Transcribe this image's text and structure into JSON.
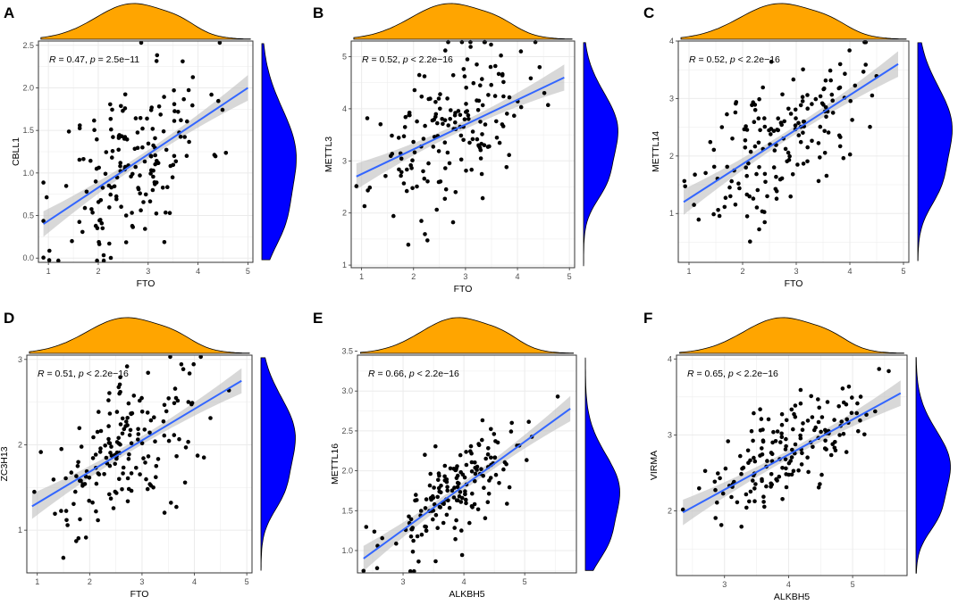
{
  "colors": {
    "top_density": "#FFA500",
    "side_density": "#0000FF",
    "regression": "#3366FF",
    "ci_band": "#BEBEBE",
    "points": "#000000",
    "grid": "#EBEBEB",
    "panel_border": "#333333"
  },
  "chart_data": [
    {
      "id": "A",
      "type": "scatter",
      "letter": "A",
      "xlabel": "FTO",
      "ylabel": "CBLL1",
      "annotation": {
        "r_label": "R",
        "r_text": " = 0.47, ",
        "p_label": "p",
        "p_text": " = 2.5e−11"
      },
      "xlim": [
        0.8,
        5.1
      ],
      "ylim": [
        -0.05,
        2.55
      ],
      "xticks": [
        1,
        2,
        3,
        4,
        5
      ],
      "yticks": [
        0.0,
        0.5,
        1.0,
        1.5,
        2.0,
        2.5
      ],
      "ytick_labels": [
        "0.0",
        "0.5",
        "1.0",
        "1.5",
        "2.0",
        "2.5"
      ],
      "fit": {
        "x0": 0.9,
        "y0": 0.4,
        "x1": 5.0,
        "y1": 2.0
      },
      "x_mode": 2.7,
      "x_spread": 0.75,
      "y_mode": 1.2,
      "y_spread": 0.55,
      "n_points": 170,
      "seed": 11,
      "jitter": 0.55
    },
    {
      "id": "B",
      "type": "scatter",
      "letter": "B",
      "xlabel": "FTO",
      "ylabel": "METTL3",
      "annotation": {
        "r_label": "R",
        "r_text": " = 0.52, ",
        "p_label": "p",
        "p_text": " < 2.2e−16"
      },
      "xlim": [
        0.8,
        5.1
      ],
      "ylim": [
        0.95,
        5.3
      ],
      "xticks": [
        1,
        2,
        3,
        4,
        5
      ],
      "yticks": [
        1,
        2,
        3,
        4,
        5
      ],
      "ytick_labels": [
        "1",
        "2",
        "3",
        "4",
        "5"
      ],
      "fit": {
        "x0": 0.9,
        "y0": 2.7,
        "x1": 4.9,
        "y1": 4.6
      },
      "x_mode": 2.7,
      "x_spread": 0.75,
      "y_mode": 3.6,
      "y_spread": 0.7,
      "n_points": 170,
      "seed": 23,
      "jitter": 0.7
    },
    {
      "id": "C",
      "type": "scatter",
      "letter": "C",
      "xlabel": "FTO",
      "ylabel": "METTL14",
      "annotation": {
        "r_label": "R",
        "r_text": " = 0.52, ",
        "p_label": "p",
        "p_text": " < 2.2e−16"
      },
      "xlim": [
        0.8,
        5.1
      ],
      "ylim": [
        0.15,
        4.0
      ],
      "xticks": [
        1,
        2,
        3,
        4,
        5
      ],
      "yticks": [
        1,
        2,
        3,
        4
      ],
      "ytick_labels": [
        "1",
        "2",
        "3",
        "4"
      ],
      "fit": {
        "x0": 0.9,
        "y0": 1.2,
        "x1": 4.9,
        "y1": 3.6
      },
      "x_mode": 2.7,
      "x_spread": 0.75,
      "y_mode": 2.5,
      "y_spread": 0.7,
      "n_points": 170,
      "seed": 37,
      "jitter": 0.6
    },
    {
      "id": "D",
      "type": "scatter",
      "letter": "D",
      "xlabel": "FTO",
      "ylabel": "ZC3H13",
      "annotation": {
        "r_label": "R",
        "r_text": " = 0.51, ",
        "p_label": "p",
        "p_text": " < 2.2e−16"
      },
      "xlim": [
        0.8,
        5.1
      ],
      "ylim": [
        0.5,
        3.05
      ],
      "xticks": [
        1,
        2,
        3,
        4,
        5
      ],
      "yticks": [
        1,
        2,
        3
      ],
      "ytick_labels": [
        "1",
        "2",
        "3"
      ],
      "fit": {
        "x0": 0.9,
        "y0": 1.28,
        "x1": 4.9,
        "y1": 2.75
      },
      "x_mode": 2.7,
      "x_spread": 0.75,
      "y_mode": 2.1,
      "y_spread": 0.45,
      "n_points": 170,
      "seed": 41,
      "jitter": 0.4
    },
    {
      "id": "E",
      "type": "scatter",
      "letter": "E",
      "xlabel": "ALKBH5",
      "ylabel": "METTL16",
      "annotation": {
        "r_label": "R",
        "r_text": " = 0.66, ",
        "p_label": "p",
        "p_text": " < 2.2e−16"
      },
      "xlim": [
        2.25,
        5.85
      ],
      "ylim": [
        0.72,
        3.45
      ],
      "xticks": [
        3,
        4,
        5
      ],
      "yticks": [
        1.0,
        1.5,
        2.0,
        2.5,
        3.0,
        3.5
      ],
      "ytick_labels": [
        "1.0",
        "1.5",
        "2.0",
        "2.5",
        "3.0",
        "3.5"
      ],
      "fit": {
        "x0": 2.35,
        "y0": 0.9,
        "x1": 5.75,
        "y1": 2.78
      },
      "x_mode": 3.9,
      "x_spread": 0.6,
      "y_mode": 1.75,
      "y_spread": 0.45,
      "n_points": 170,
      "seed": 53,
      "jitter": 0.3
    },
    {
      "id": "F",
      "type": "scatter",
      "letter": "F",
      "xlabel": "ALKBH5",
      "ylabel": "VIRMA",
      "annotation": {
        "r_label": "R",
        "r_text": " = 0.65, ",
        "p_label": "p",
        "p_text": " < 2.2e−16"
      },
      "xlim": [
        2.25,
        5.85
      ],
      "ylim": [
        1.15,
        4.05
      ],
      "xticks": [
        3,
        4,
        5
      ],
      "yticks": [
        2,
        3,
        4
      ],
      "ytick_labels": [
        "2",
        "3",
        "4"
      ],
      "fit": {
        "x0": 2.35,
        "y0": 1.98,
        "x1": 5.75,
        "y1": 3.55
      },
      "x_mode": 3.9,
      "x_spread": 0.6,
      "y_mode": 2.6,
      "y_spread": 0.45,
      "n_points": 170,
      "seed": 67,
      "jitter": 0.3
    }
  ]
}
